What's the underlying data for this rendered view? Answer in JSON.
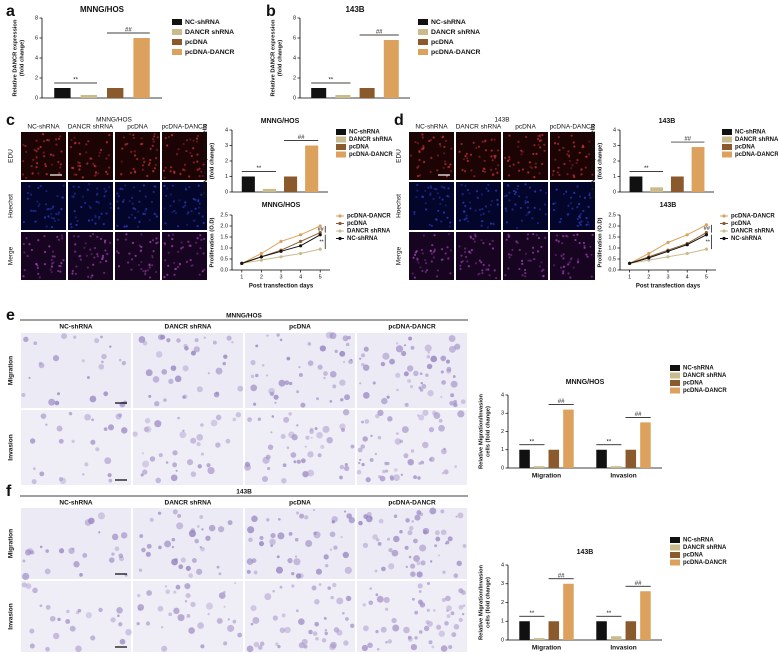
{
  "panel_letters": [
    "a",
    "b",
    "c",
    "d",
    "e",
    "f"
  ],
  "image_grids": [
    {
      "title": "MNNG/HOS",
      "columns": [
        "NC-shRNA",
        "DANCR shRNA",
        "pcDNA",
        "pcDNA-DANCR"
      ],
      "rows": [
        "EDU",
        "Hoechst",
        "Merge"
      ]
    },
    {
      "title": "143B",
      "columns": [
        "NC-shRNA",
        "DANCR shRNA",
        "pcDNA",
        "pcDNA-DANCR"
      ],
      "rows": [
        "EDU",
        "Hoechst",
        "Merge"
      ]
    },
    {
      "title": "MNNG/HOS",
      "columns": [
        "NC-shRNA",
        "DANCR shRNA",
        "pcDNA",
        "pcDNA-DANCR"
      ],
      "rows": [
        "Migration",
        "Invasion"
      ]
    },
    {
      "title": "143B",
      "columns": [
        "NC-shRNA",
        "DANCR shRNA",
        "pcDNA",
        "pcDNA-DANCR"
      ],
      "rows": [
        "Migration",
        "Invasion"
      ]
    }
  ],
  "chart_data": [
    {
      "type": "bar",
      "title": "MNNG/HOS",
      "y_label": [
        "Relative DANCR expression",
        "(fold change)"
      ],
      "categories": [
        null
      ],
      "series": [
        {
          "name": "NC-shRNA",
          "color": "#111111",
          "values": [
            1
          ]
        },
        {
          "name": "DANCR shRNA",
          "color": "#c9bb8c",
          "values": [
            0.3
          ]
        },
        {
          "name": "pcDNA",
          "color": "#8a5a2c",
          "values": [
            1
          ]
        },
        {
          "name": "pcDNA-DANCR",
          "color": "#dca15c",
          "values": [
            6
          ]
        }
      ],
      "ylim": [
        0,
        8
      ],
      "yticks": [
        0,
        2,
        4,
        6,
        8
      ],
      "annotations": [
        "**",
        "##"
      ]
    },
    {
      "type": "bar",
      "title": "143B",
      "y_label": [
        "Relative DANCR expression",
        "(fold change)"
      ],
      "categories": [
        null
      ],
      "series": [
        {
          "name": "NC-shRNA",
          "color": "#111111",
          "values": [
            1
          ]
        },
        {
          "name": "DANCR shRNA",
          "color": "#c9bb8c",
          "values": [
            0.3
          ]
        },
        {
          "name": "pcDNA",
          "color": "#8a5a2c",
          "values": [
            1
          ]
        },
        {
          "name": "pcDNA-DANCR",
          "color": "#dca15c",
          "values": [
            5.8
          ]
        }
      ],
      "ylim": [
        0,
        8
      ],
      "yticks": [
        0,
        2,
        4,
        6,
        8
      ],
      "annotations": [
        "**",
        "##"
      ]
    },
    {
      "type": "bar",
      "title": "MNNG/HOS",
      "y_label": [
        "Relative EDU positive cells",
        "(fold change)"
      ],
      "categories": [
        null
      ],
      "series": [
        {
          "name": "NC-shRNA",
          "color": "#111111",
          "values": [
            1
          ]
        },
        {
          "name": "DANCR shRNA",
          "color": "#c9bb8c",
          "values": [
            0.2
          ]
        },
        {
          "name": "pcDNA",
          "color": "#8a5a2c",
          "values": [
            1
          ]
        },
        {
          "name": "pcDNA-DANCR",
          "color": "#dca15c",
          "values": [
            3
          ]
        }
      ],
      "ylim": [
        0,
        4
      ],
      "yticks": [
        0,
        1,
        2,
        3,
        4
      ],
      "annotations": [
        "**",
        "##"
      ]
    },
    {
      "type": "line",
      "title": "MNNG/HOS",
      "x_label": "Post transfection days",
      "y_label": [
        "Proliferation (O.D)"
      ],
      "x": [
        1,
        2,
        3,
        4,
        5
      ],
      "xlim": [
        0.5,
        5.5
      ],
      "xticks": [
        1,
        2,
        3,
        4,
        5
      ],
      "series": [
        {
          "name": "pcDNA-DANCR",
          "color": "#dca15c",
          "values": [
            0.3,
            0.75,
            1.3,
            1.6,
            2.0
          ]
        },
        {
          "name": "pcDNA",
          "color": "#8a5a2c",
          "values": [
            0.3,
            0.6,
            0.9,
            1.3,
            1.7
          ]
        },
        {
          "name": "DANCR shRNA",
          "color": "#c9bb8c",
          "values": [
            0.3,
            0.45,
            0.6,
            0.75,
            0.95
          ]
        },
        {
          "name": "NC-shRNA",
          "color": "#111111",
          "values": [
            0.3,
            0.6,
            0.85,
            1.1,
            1.6
          ]
        }
      ],
      "ylim": [
        0,
        2.5
      ],
      "yticks": [
        {
          "value": 0,
          "label": "0.0"
        },
        {
          "value": 0.5,
          "label": "0.5"
        },
        {
          "value": 1,
          "label": "1.0"
        },
        {
          "value": 1.5,
          "label": "1.5"
        },
        {
          "value": 2,
          "label": "2.0"
        },
        {
          "value": 2.5,
          "label": "2.5"
        }
      ],
      "annotations": [
        "##",
        "**"
      ]
    },
    {
      "type": "bar",
      "title": "143B",
      "y_label": [
        "Relative EDU positive cells",
        "(fold change)"
      ],
      "categories": [
        null
      ],
      "series": [
        {
          "name": "NC-shRNA",
          "color": "#111111",
          "values": [
            1
          ]
        },
        {
          "name": "DANCR shRNA",
          "color": "#c9bb8c",
          "values": [
            0.3
          ]
        },
        {
          "name": "pcDNA",
          "color": "#8a5a2c",
          "values": [
            1
          ]
        },
        {
          "name": "pcDNA-DANCR",
          "color": "#dca15c",
          "values": [
            2.9
          ]
        }
      ],
      "ylim": [
        0,
        4
      ],
      "yticks": [
        0,
        1,
        2,
        3,
        4
      ],
      "annotations": [
        "**",
        "##"
      ]
    },
    {
      "type": "line",
      "title": "143B",
      "x_label": "Post transfection days",
      "y_label": [
        "Proliferation (O.D)"
      ],
      "x": [
        1,
        2,
        3,
        4,
        5
      ],
      "xlim": [
        0.5,
        5.5
      ],
      "xticks": [
        1,
        2,
        3,
        4,
        5
      ],
      "series": [
        {
          "name": "pcDNA-DANCR",
          "color": "#dca15c",
          "values": [
            0.3,
            0.75,
            1.25,
            1.6,
            2.05
          ]
        },
        {
          "name": "pcDNA",
          "color": "#8a5a2c",
          "values": [
            0.3,
            0.6,
            0.9,
            1.2,
            1.7
          ]
        },
        {
          "name": "DANCR shRNA",
          "color": "#c9bb8c",
          "values": [
            0.3,
            0.45,
            0.6,
            0.75,
            0.95
          ]
        },
        {
          "name": "NC-shRNA",
          "color": "#111111",
          "values": [
            0.3,
            0.55,
            0.85,
            1.15,
            1.6
          ]
        }
      ],
      "ylim": [
        0,
        2.5
      ],
      "yticks": [
        {
          "value": 0,
          "label": "0.0"
        },
        {
          "value": 0.5,
          "label": "0.5"
        },
        {
          "value": 1,
          "label": "1.0"
        },
        {
          "value": 1.5,
          "label": "1.5"
        },
        {
          "value": 2,
          "label": "2.0"
        },
        {
          "value": 2.5,
          "label": "2.5"
        }
      ],
      "annotations": [
        "##",
        "**"
      ]
    },
    {
      "type": "bar",
      "title": "MNNG/HOS",
      "y_label": [
        "Relative Migration/Invasion",
        "cells (fold change)"
      ],
      "categories": [
        "Migration",
        "Invasion"
      ],
      "series": [
        {
          "name": "NC-shRNA",
          "color": "#111111",
          "values": [
            1,
            1
          ]
        },
        {
          "name": "DANCR shRNA",
          "color": "#c9bb8c",
          "values": [
            0.1,
            0.1
          ]
        },
        {
          "name": "pcDNA",
          "color": "#8a5a2c",
          "values": [
            1,
            1
          ]
        },
        {
          "name": "pcDNA-DANCR",
          "color": "#dca15c",
          "values": [
            3.2,
            2.5
          ]
        }
      ],
      "ylim": [
        0,
        4
      ],
      "yticks": [
        0,
        1,
        2,
        3,
        4
      ],
      "annotations": [
        "**",
        "##",
        "**",
        "##"
      ]
    },
    {
      "type": "bar",
      "title": "143B",
      "y_label": [
        "Relative Migration/Invasion",
        "cells (fold change)"
      ],
      "categories": [
        "Migration",
        "Invasion"
      ],
      "series": [
        {
          "name": "NC-shRNA",
          "color": "#111111",
          "values": [
            1,
            1
          ]
        },
        {
          "name": "DANCR shRNA",
          "color": "#c9bb8c",
          "values": [
            0.1,
            0.2
          ]
        },
        {
          "name": "pcDNA",
          "color": "#8a5a2c",
          "values": [
            1,
            1
          ]
        },
        {
          "name": "pcDNA-DANCR",
          "color": "#dca15c",
          "values": [
            3,
            2.6
          ]
        }
      ],
      "ylim": [
        0,
        4
      ],
      "yticks": [
        0,
        1,
        2,
        3,
        4
      ],
      "annotations": [
        "**",
        "##",
        "**",
        "##"
      ]
    }
  ]
}
